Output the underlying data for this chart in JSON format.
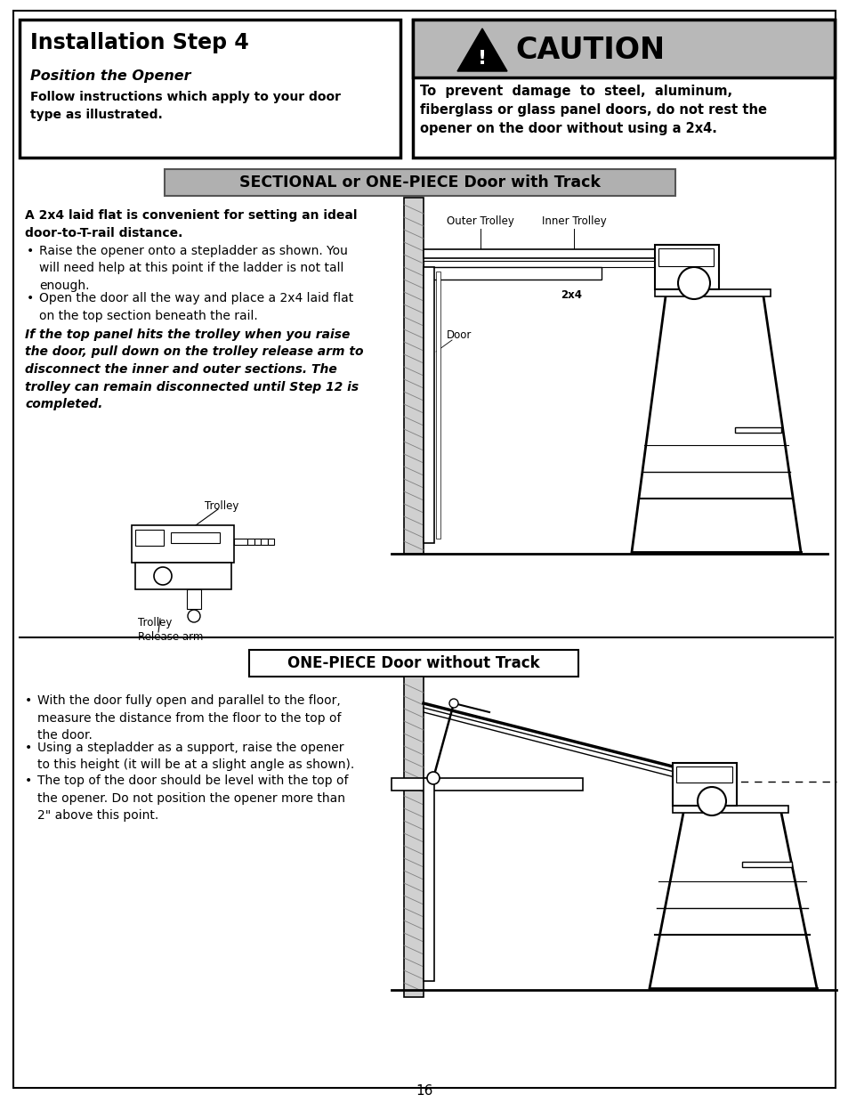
{
  "page_bg": "#ffffff",
  "border_color": "#000000",
  "page_number": "16",
  "top_left_box": {
    "title": "Installation Step 4",
    "subtitle": "Position the Opener",
    "body": "Follow instructions which apply to your door\ntype as illustrated."
  },
  "caution_box": {
    "header_bg": "#b0b0b0",
    "header_text": "CAUTION",
    "body": "To  prevent  damage  to  steel,  aluminum,\nfiberglass or glass panel doors, do not rest the\nopener on the door without using a 2x4."
  },
  "section1_header": "SECTIONAL or ONE-PIECE Door with Track",
  "section1_header_bg": "#b0b0b0",
  "section1_bold_intro": "A 2x4 laid flat is convenient for setting an ideal\ndoor-to-T-rail distance.",
  "section1_bullets": [
    "Raise the opener onto a stepladder as shown. You\nwill need help at this point if the ladder is not tall\nenough.",
    "Open the door all the way and place a 2x4 laid flat\non the top section beneath the rail."
  ],
  "section1_italic": "If the top panel hits the trolley when you raise\nthe door, pull down on the trolley release arm to\ndisconnect the inner and outer sections. The\ntrolley can remain disconnected until Step 12 is\ncompleted.",
  "section2_header": "ONE-PIECE Door without Track",
  "section2_bullets": [
    "With the door fully open and parallel to the floor,\nmeasure the distance from the floor to the top of\nthe door.",
    "Using a stepladder as a support, raise the opener\nto this height (it will be at a slight angle as shown).",
    "The top of the door should be level with the top of\nthe opener. Do not position the opener more than\n2\" above this point."
  ],
  "trolley_label": "Trolley",
  "trolley_release_label": "Trolley\nRelease arm",
  "outer_trolley_label": "Outer Trolley",
  "inner_trolley_label": "Inner Trolley",
  "door_label": "Door",
  "label_2x4": "2x4"
}
